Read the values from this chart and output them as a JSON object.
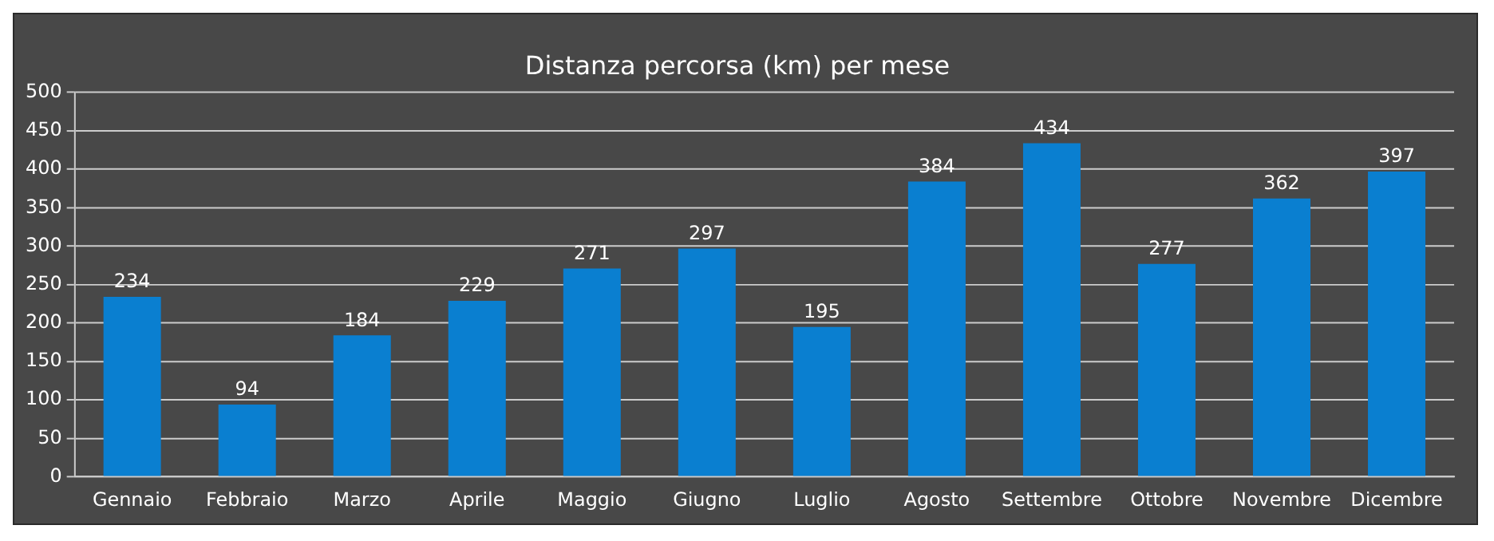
{
  "chart_data": {
    "type": "bar",
    "title": "Distanza percorsa (km) per mese",
    "categories": [
      "Gennaio",
      "Febbraio",
      "Marzo",
      "Aprile",
      "Maggio",
      "Giugno",
      "Luglio",
      "Agosto",
      "Settembre",
      "Ottobre",
      "Novembre",
      "Dicembre"
    ],
    "values": [
      234,
      94,
      184,
      229,
      271,
      297,
      195,
      384,
      434,
      277,
      362,
      397
    ],
    "color": "#0a7fd0",
    "ylim": [
      0,
      500
    ],
    "yticks": [
      0,
      50,
      100,
      150,
      200,
      250,
      300,
      350,
      400,
      450,
      500
    ],
    "grid": "y",
    "data_labels": true,
    "legend": false
  }
}
